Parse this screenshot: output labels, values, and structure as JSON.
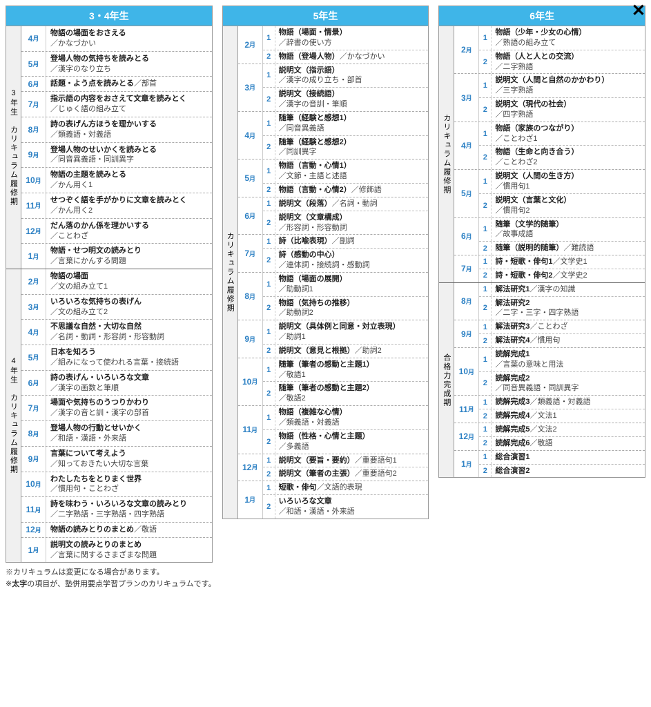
{
  "close_label": "✕",
  "columns": [
    {
      "header": "3・4年生",
      "sections": [
        {
          "label": "3年生　カリキュラム履修期",
          "months": [
            {
              "month": "4",
              "items": [
                {
                  "title": "物語の場面をおさえる",
                  "sub": "／かなづかい"
                }
              ]
            },
            {
              "month": "5",
              "items": [
                {
                  "title": "登場人物の気持ちを読みとる",
                  "sub": "／漢字のなり立ち"
                }
              ]
            },
            {
              "month": "6",
              "items": [
                {
                  "title": "話題・よう点を読みとる",
                  "sub": "／部首",
                  "inline": true
                }
              ]
            },
            {
              "month": "7",
              "items": [
                {
                  "title": "指示語の内容をおさえて文章を読みとく",
                  "sub": "／じゅく語の組み立て"
                }
              ]
            },
            {
              "month": "8",
              "items": [
                {
                  "title": "詩の表げん方ほうを理かいする",
                  "sub": "／類義語・対義語"
                }
              ]
            },
            {
              "month": "9",
              "items": [
                {
                  "title": "登場人物のせいかくを読みとる",
                  "sub": "／同音異義語・同訓異字"
                }
              ]
            },
            {
              "month": "10",
              "items": [
                {
                  "title": "物語の主題を読みとる",
                  "sub": "／かん用く1"
                }
              ]
            },
            {
              "month": "11",
              "items": [
                {
                  "title": "せつぞく語を手がかりに文章を読みとく",
                  "sub": "／かん用く2"
                }
              ]
            },
            {
              "month": "12",
              "items": [
                {
                  "title": "だん落のかん係を理かいする",
                  "sub": "／ことわざ"
                }
              ]
            },
            {
              "month": "1",
              "items": [
                {
                  "title": "物語・せつ明文の読みとり",
                  "sub": "／言葉にかんする問題"
                }
              ]
            }
          ]
        },
        {
          "label": "4年生　カリキュラム履修期",
          "months": [
            {
              "month": "2",
              "items": [
                {
                  "title": "物語の場面",
                  "sub": "／文の組み立て1"
                }
              ]
            },
            {
              "month": "3",
              "items": [
                {
                  "title": "いろいろな気持ちの表げん",
                  "sub": "／文の組み立て2"
                }
              ]
            },
            {
              "month": "4",
              "items": [
                {
                  "title": "不思議な自然・大切な自然",
                  "sub": "／名詞・動詞・形容詞・形容動詞"
                }
              ]
            },
            {
              "month": "5",
              "items": [
                {
                  "title": "日本を知ろう",
                  "sub": "／組みになって使われる言葉・接続語"
                }
              ]
            },
            {
              "month": "6",
              "items": [
                {
                  "title": "詩の表げん・いろいろな文章",
                  "sub": "／漢字の画数と筆順"
                }
              ]
            },
            {
              "month": "7",
              "items": [
                {
                  "title": "場面や気持ちのうつりかわり",
                  "sub": "／漢字の音と訓・漢字の部首"
                }
              ]
            },
            {
              "month": "8",
              "items": [
                {
                  "title": "登場人物の行動とせいかく",
                  "sub": "／和語・漢語・外来語"
                }
              ]
            },
            {
              "month": "9",
              "items": [
                {
                  "title": "言葉について考えよう",
                  "sub": "／知っておきたい大切な言葉"
                }
              ]
            },
            {
              "month": "10",
              "items": [
                {
                  "title": "わたしたちをとりまく世界",
                  "sub": "／慣用句・ことわざ"
                }
              ]
            },
            {
              "month": "11",
              "items": [
                {
                  "title": "詩を味わう・いろいろな文章の読みとり",
                  "sub": "／二字熟語・三字熟語・四字熟語"
                }
              ]
            },
            {
              "month": "12",
              "items": [
                {
                  "title": "物語の読みとりのまとめ",
                  "sub": "／敬語",
                  "inline": true
                }
              ]
            },
            {
              "month": "1",
              "items": [
                {
                  "title": "説明文の読みとりのまとめ",
                  "sub": "／言葉に関するさまざまな問題"
                }
              ]
            }
          ]
        }
      ]
    },
    {
      "header": "5年生",
      "sections": [
        {
          "label": "カリキュラム履修期",
          "months": [
            {
              "month": "2",
              "items": [
                {
                  "num": "1",
                  "title": "物語（場面・情景）",
                  "sub": "／辞書の使い方"
                },
                {
                  "num": "2",
                  "title": "物語（登場人物）",
                  "sub": "／かなづかい",
                  "inline": true
                }
              ]
            },
            {
              "month": "3",
              "items": [
                {
                  "num": "1",
                  "title": "説明文（指示語）",
                  "sub": "／漢字の成り立ち・部首"
                },
                {
                  "num": "2",
                  "title": "説明文（接続語）",
                  "sub": "／漢字の音訓・筆順"
                }
              ]
            },
            {
              "month": "4",
              "items": [
                {
                  "num": "1",
                  "title": "随筆（経験と感想1）",
                  "sub": "／同音異義語"
                },
                {
                  "num": "2",
                  "title": "随筆（経験と感想2）",
                  "sub": "／同訓異字"
                }
              ]
            },
            {
              "month": "5",
              "items": [
                {
                  "num": "1",
                  "title": "物語（言動・心情1）",
                  "sub": "／文節・主語と述語"
                },
                {
                  "num": "2",
                  "title": "物語（言動・心情2）",
                  "sub": "／修飾語",
                  "inline": true
                }
              ]
            },
            {
              "month": "6",
              "items": [
                {
                  "num": "1",
                  "title": "説明文（段落）",
                  "sub": "／名詞・動詞",
                  "inline": true
                },
                {
                  "num": "2",
                  "title": "説明文（文章構成）",
                  "sub": "／形容詞・形容動詞"
                }
              ]
            },
            {
              "month": "7",
              "items": [
                {
                  "num": "1",
                  "title": "詩（比喩表現）",
                  "sub": "／副詞",
                  "inline": true
                },
                {
                  "num": "2",
                  "title": "詩（感動の中心）",
                  "sub": "／連体詞・接続詞・感動詞"
                }
              ]
            },
            {
              "month": "8",
              "items": [
                {
                  "num": "1",
                  "title": "物語（場面の展開）",
                  "sub": "／助動詞1"
                },
                {
                  "num": "2",
                  "title": "物語（気持ちの推移）",
                  "sub": "／助動詞2"
                }
              ]
            },
            {
              "month": "9",
              "items": [
                {
                  "num": "1",
                  "title": "説明文（具体例と同意・対立表現）",
                  "sub": "／助詞1"
                },
                {
                  "num": "2",
                  "title": "説明文（意見と根拠）",
                  "sub": "／助詞2",
                  "inline": true
                }
              ]
            },
            {
              "month": "10",
              "items": [
                {
                  "num": "1",
                  "title": "随筆（筆者の感動と主題1）",
                  "sub": "／敬語1"
                },
                {
                  "num": "2",
                  "title": "随筆（筆者の感動と主題2）",
                  "sub": "／敬語2"
                }
              ]
            },
            {
              "month": "11",
              "items": [
                {
                  "num": "1",
                  "title": "物語（複雑な心情）",
                  "sub": "／類義語・対義語"
                },
                {
                  "num": "2",
                  "title": "物語（性格・心情と主題）",
                  "sub": "／多義語"
                }
              ]
            },
            {
              "month": "12",
              "items": [
                {
                  "num": "1",
                  "title": "説明文（要旨・要約）",
                  "sub": "／重要語句1",
                  "inline": true
                },
                {
                  "num": "2",
                  "title": "説明文（筆者の主張）",
                  "sub": "／重要語句2",
                  "inline": true
                }
              ]
            },
            {
              "month": "1",
              "items": [
                {
                  "num": "1",
                  "title": "短歌・俳句",
                  "sub": "／文語的表現",
                  "inline": true
                },
                {
                  "num": "2",
                  "title": "いろいろな文章",
                  "sub": "／和語・漢語・外来語"
                }
              ]
            }
          ]
        }
      ]
    },
    {
      "header": "6年生",
      "sections": [
        {
          "label": "カリキュラム履修期",
          "months": [
            {
              "month": "2",
              "items": [
                {
                  "num": "1",
                  "title": "物語（少年・少女の心情）",
                  "sub": "／熟語の組み立て"
                },
                {
                  "num": "2",
                  "title": "物語（人と人との交流）",
                  "sub": "／二字熟語"
                }
              ]
            },
            {
              "month": "3",
              "items": [
                {
                  "num": "1",
                  "title": "説明文（人間と自然のかかわり）",
                  "sub": "／三字熟語"
                },
                {
                  "num": "2",
                  "title": "説明文（現代の社会）",
                  "sub": "／四字熟語"
                }
              ]
            },
            {
              "month": "4",
              "items": [
                {
                  "num": "1",
                  "title": "物語（家族のつながり）",
                  "sub": "／ことわざ1"
                },
                {
                  "num": "2",
                  "title": "物語（生命と向き合う）",
                  "sub": "／ことわざ2"
                }
              ]
            },
            {
              "month": "5",
              "items": [
                {
                  "num": "1",
                  "title": "説明文（人間の生き方）",
                  "sub": "／慣用句1"
                },
                {
                  "num": "2",
                  "title": "説明文（言葉と文化）",
                  "sub": "／慣用句2"
                }
              ]
            },
            {
              "month": "6",
              "items": [
                {
                  "num": "1",
                  "title": "随筆（文学的随筆）",
                  "sub": "／故事成語"
                },
                {
                  "num": "2",
                  "title": "随筆（説明的随筆）",
                  "sub": "／難読語",
                  "inline": true
                }
              ]
            },
            {
              "month": "7",
              "items": [
                {
                  "num": "1",
                  "title": "詩・短歌・俳句1",
                  "sub": "／文学史1",
                  "inline": true
                },
                {
                  "num": "2",
                  "title": "詩・短歌・俳句2",
                  "sub": "／文学史2",
                  "inline": true
                }
              ]
            }
          ]
        },
        {
          "label": "合格力完成期",
          "months": [
            {
              "month": "8",
              "items": [
                {
                  "num": "1",
                  "title": "解法研究1",
                  "sub": "／漢字の知識",
                  "inline": true
                },
                {
                  "num": "2",
                  "title": "解法研究2",
                  "sub": "／二字・三字・四字熟語"
                }
              ]
            },
            {
              "month": "9",
              "items": [
                {
                  "num": "1",
                  "title": "解法研究3",
                  "sub": "／ことわざ",
                  "inline": true
                },
                {
                  "num": "2",
                  "title": "解法研究4",
                  "sub": "／慣用句",
                  "inline": true
                }
              ]
            },
            {
              "month": "10",
              "items": [
                {
                  "num": "1",
                  "title": "読解完成1",
                  "sub": "／言葉の意味と用法"
                },
                {
                  "num": "2",
                  "title": "読解完成2",
                  "sub": "／同音異義語・同訓異字"
                }
              ]
            },
            {
              "month": "11",
              "items": [
                {
                  "num": "1",
                  "title": "読解完成3",
                  "sub": "／類義語・対義語",
                  "inline": true
                },
                {
                  "num": "2",
                  "title": "読解完成4",
                  "sub": "／文法1",
                  "inline": true
                }
              ]
            },
            {
              "month": "12",
              "items": [
                {
                  "num": "1",
                  "title": "読解完成5",
                  "sub": "／文法2",
                  "inline": true
                },
                {
                  "num": "2",
                  "title": "読解完成6",
                  "sub": "／敬語",
                  "inline": true
                }
              ]
            },
            {
              "month": "1",
              "items": [
                {
                  "num": "1",
                  "title": "総合演習1",
                  "sub": ""
                },
                {
                  "num": "2",
                  "title": "総合演習2",
                  "sub": ""
                }
              ]
            }
          ]
        }
      ]
    }
  ],
  "footnotes": [
    {
      "text": "※カリキュラムは変更になる場合があります。"
    },
    {
      "prefix": "※",
      "bold": "太字",
      "suffix": "の項目が、塾併用要点学習プランのカリキュラムです。"
    }
  ]
}
